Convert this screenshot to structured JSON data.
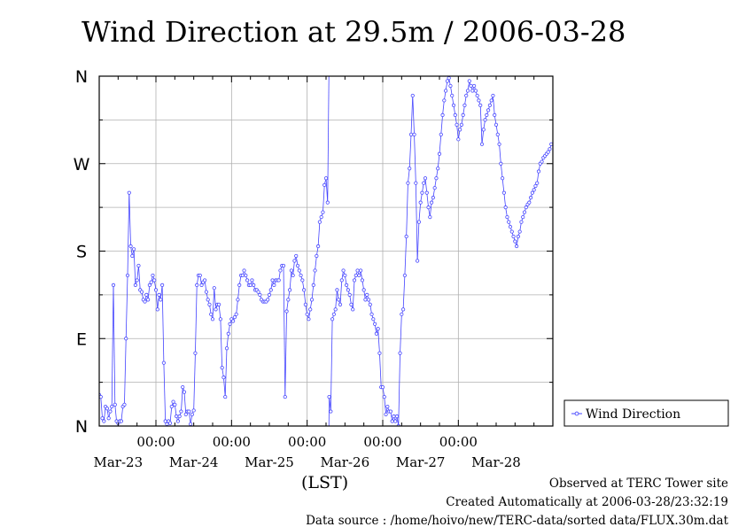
{
  "chart_data": {
    "type": "line",
    "title": "Wind Direction at 29.5m / 2006-03-28",
    "xlabel": "(LST)",
    "ylabel": "",
    "yticks": [
      "N",
      "E",
      "S",
      "W",
      "N"
    ],
    "ylim": [
      0,
      360
    ],
    "xlim_hours": [
      0,
      144
    ],
    "x_time_labels": [
      "00:00",
      "00:00",
      "00:00",
      "00:00",
      "00:00"
    ],
    "x_date_labels": [
      "Mar-23",
      "Mar-24",
      "Mar-25",
      "Mar-26",
      "Mar-27",
      "Mar-28"
    ],
    "grid": true,
    "legend_position": "right",
    "series": [
      {
        "name": "Wind Direction",
        "color": "#4444ff",
        "marker": "open-circle",
        "points": [
          [
            0.0,
            32
          ],
          [
            0.5,
            30
          ],
          [
            1.0,
            8
          ],
          [
            1.5,
            5
          ],
          [
            2.0,
            20
          ],
          [
            2.5,
            18
          ],
          [
            3.0,
            8
          ],
          [
            3.5,
            15
          ],
          [
            4.0,
            20
          ],
          [
            4.5,
            145
          ],
          [
            5.0,
            22
          ],
          [
            5.5,
            5
          ],
          [
            6.0,
            3
          ],
          [
            6.5,
            5
          ],
          [
            7.0,
            5
          ],
          [
            7.5,
            20
          ],
          [
            8.0,
            22
          ],
          [
            8.5,
            90
          ],
          [
            9.0,
            155
          ],
          [
            9.5,
            240
          ],
          [
            10.0,
            185
          ],
          [
            10.5,
            175
          ],
          [
            11.0,
            182
          ],
          [
            11.5,
            145
          ],
          [
            12.0,
            150
          ],
          [
            12.5,
            165
          ],
          [
            13.0,
            140
          ],
          [
            13.5,
            138
          ],
          [
            14.0,
            130
          ],
          [
            14.5,
            128
          ],
          [
            15.0,
            135
          ],
          [
            15.5,
            130
          ],
          [
            16.0,
            145
          ],
          [
            16.5,
            148
          ],
          [
            17.0,
            155
          ],
          [
            17.5,
            150
          ],
          [
            18.0,
            140
          ],
          [
            18.5,
            120
          ],
          [
            19.0,
            135
          ],
          [
            19.5,
            130
          ],
          [
            20.0,
            145
          ],
          [
            20.5,
            65
          ],
          [
            21.0,
            5
          ],
          [
            21.5,
            2
          ],
          [
            22.0,
            5
          ],
          [
            22.5,
            3
          ],
          [
            23.0,
            20
          ],
          [
            23.5,
            25
          ],
          [
            24.0,
            22
          ],
          [
            24.5,
            10
          ],
          [
            25.0,
            5
          ],
          [
            25.5,
            10
          ],
          [
            26.0,
            15
          ],
          [
            26.5,
            40
          ],
          [
            27.0,
            35
          ],
          [
            27.5,
            12
          ],
          [
            28.0,
            15
          ],
          [
            28.5,
            15
          ],
          [
            29.0,
            2
          ],
          [
            29.5,
            12
          ],
          [
            30.0,
            16
          ],
          [
            30.5,
            75
          ],
          [
            31.0,
            145
          ],
          [
            31.5,
            155
          ],
          [
            32.0,
            155
          ],
          [
            32.5,
            145
          ],
          [
            33.0,
            148
          ],
          [
            33.5,
            150
          ],
          [
            34.0,
            138
          ],
          [
            34.5,
            130
          ],
          [
            35.0,
            125
          ],
          [
            35.5,
            115
          ],
          [
            36.0,
            110
          ],
          [
            36.5,
            142
          ],
          [
            37.0,
            120
          ],
          [
            37.5,
            125
          ],
          [
            38.0,
            125
          ],
          [
            38.5,
            110
          ],
          [
            39.0,
            60
          ],
          [
            39.5,
            50
          ],
          [
            40.0,
            30
          ],
          [
            40.5,
            80
          ],
          [
            41.0,
            95
          ],
          [
            41.5,
            105
          ],
          [
            42.0,
            110
          ],
          [
            42.5,
            108
          ],
          [
            43.0,
            112
          ],
          [
            43.5,
            115
          ],
          [
            44.0,
            130
          ],
          [
            44.5,
            145
          ],
          [
            45.0,
            155
          ],
          [
            45.5,
            155
          ],
          [
            46.0,
            160
          ],
          [
            46.5,
            155
          ],
          [
            47.0,
            150
          ],
          [
            47.5,
            145
          ],
          [
            48.0,
            145
          ],
          [
            48.5,
            150
          ],
          [
            49.0,
            145
          ],
          [
            49.5,
            140
          ],
          [
            50.0,
            140
          ],
          [
            50.5,
            138
          ],
          [
            51.0,
            135
          ],
          [
            51.5,
            130
          ],
          [
            52.0,
            128
          ],
          [
            52.5,
            128
          ],
          [
            53.0,
            128
          ],
          [
            53.5,
            130
          ],
          [
            54.0,
            135
          ],
          [
            54.5,
            140
          ],
          [
            55.0,
            150
          ],
          [
            55.5,
            145
          ],
          [
            56.0,
            150
          ],
          [
            56.5,
            150
          ],
          [
            57.0,
            150
          ],
          [
            57.5,
            160
          ],
          [
            58.0,
            165
          ],
          [
            58.5,
            165
          ],
          [
            59.0,
            30
          ],
          [
            59.5,
            118
          ],
          [
            60.0,
            130
          ],
          [
            60.5,
            140
          ],
          [
            61.0,
            160
          ],
          [
            61.5,
            155
          ],
          [
            62.0,
            170
          ],
          [
            62.5,
            175
          ],
          [
            63.0,
            165
          ],
          [
            63.5,
            160
          ],
          [
            64.0,
            155
          ],
          [
            64.5,
            150
          ],
          [
            65.0,
            140
          ],
          [
            65.5,
            125
          ],
          [
            66.0,
            115
          ],
          [
            66.5,
            110
          ],
          [
            67.0,
            120
          ],
          [
            67.5,
            130
          ],
          [
            68.0,
            145
          ],
          [
            68.5,
            160
          ],
          [
            69.0,
            175
          ],
          [
            69.5,
            185
          ],
          [
            70.0,
            210
          ],
          [
            70.5,
            215
          ],
          [
            71.0,
            220
          ],
          [
            71.5,
            248
          ],
          [
            72.0,
            255
          ],
          [
            72.5,
            230
          ],
          [
            73.0,
            30
          ],
          [
            73.5,
            15
          ],
          [
            74.0,
            110
          ],
          [
            74.5,
            115
          ],
          [
            75.0,
            120
          ],
          [
            75.5,
            140
          ],
          [
            76.0,
            130
          ],
          [
            76.5,
            125
          ],
          [
            77.0,
            150
          ],
          [
            77.5,
            160
          ],
          [
            78.0,
            155
          ],
          [
            78.5,
            145
          ],
          [
            79.0,
            140
          ],
          [
            79.5,
            135
          ],
          [
            80.0,
            125
          ],
          [
            80.5,
            120
          ],
          [
            81.0,
            150
          ],
          [
            81.5,
            155
          ],
          [
            82.0,
            160
          ],
          [
            82.5,
            155
          ],
          [
            83.0,
            160
          ],
          [
            83.5,
            150
          ],
          [
            84.0,
            140
          ],
          [
            84.5,
            130
          ],
          [
            85.0,
            135
          ],
          [
            85.5,
            130
          ],
          [
            86.0,
            125
          ],
          [
            86.5,
            115
          ],
          [
            87.0,
            110
          ],
          [
            87.5,
            105
          ],
          [
            88.0,
            95
          ],
          [
            88.5,
            100
          ],
          [
            89.0,
            75
          ],
          [
            89.5,
            40
          ],
          [
            90.0,
            40
          ],
          [
            90.5,
            30
          ],
          [
            91.0,
            12
          ],
          [
            91.5,
            20
          ],
          [
            92.0,
            15
          ],
          [
            92.5,
            15
          ],
          [
            93.0,
            5
          ],
          [
            93.5,
            10
          ],
          [
            94.0,
            5
          ],
          [
            94.5,
            10
          ],
          [
            95.0,
            0
          ],
          [
            95.5,
            75
          ],
          [
            96.0,
            115
          ],
          [
            96.5,
            120
          ],
          [
            97.0,
            155
          ],
          [
            97.5,
            195
          ],
          [
            98.0,
            250
          ],
          [
            98.5,
            265
          ],
          [
            99.0,
            300
          ],
          [
            99.5,
            340
          ],
          [
            100.0,
            300
          ],
          [
            100.5,
            250
          ],
          [
            101.0,
            170
          ],
          [
            101.5,
            210
          ],
          [
            102.0,
            230
          ],
          [
            102.5,
            240
          ],
          [
            103.0,
            250
          ],
          [
            103.5,
            255
          ],
          [
            104.0,
            240
          ],
          [
            104.5,
            225
          ],
          [
            105.0,
            215
          ],
          [
            105.5,
            230
          ],
          [
            106.0,
            235
          ],
          [
            106.5,
            245
          ],
          [
            107.0,
            255
          ],
          [
            107.5,
            265
          ],
          [
            108.0,
            280
          ],
          [
            108.5,
            300
          ],
          [
            109.0,
            320
          ],
          [
            109.5,
            335
          ],
          [
            110.0,
            345
          ],
          [
            110.5,
            355
          ],
          [
            111.0,
            358
          ],
          [
            111.5,
            350
          ],
          [
            112.0,
            340
          ],
          [
            112.5,
            330
          ],
          [
            113.0,
            320
          ],
          [
            113.5,
            310
          ],
          [
            114.0,
            295
          ],
          [
            114.5,
            305
          ],
          [
            115.0,
            310
          ],
          [
            115.5,
            320
          ],
          [
            116.0,
            330
          ],
          [
            116.5,
            340
          ],
          [
            117.0,
            345
          ],
          [
            117.5,
            355
          ],
          [
            118.0,
            350
          ],
          [
            118.5,
            345
          ],
          [
            119.0,
            350
          ],
          [
            119.5,
            345
          ],
          [
            120.0,
            340
          ],
          [
            120.5,
            335
          ],
          [
            121.0,
            330
          ],
          [
            121.5,
            290
          ],
          [
            122.0,
            305
          ],
          [
            122.5,
            315
          ],
          [
            123.0,
            320
          ],
          [
            123.5,
            325
          ],
          [
            124.0,
            330
          ],
          [
            124.5,
            335
          ],
          [
            125.0,
            340
          ],
          [
            125.5,
            320
          ],
          [
            126.0,
            310
          ],
          [
            126.5,
            300
          ],
          [
            127.0,
            290
          ],
          [
            127.5,
            270
          ],
          [
            128.0,
            255
          ],
          [
            128.5,
            240
          ],
          [
            129.0,
            225
          ],
          [
            129.5,
            215
          ],
          [
            130.0,
            210
          ],
          [
            130.5,
            205
          ],
          [
            131.0,
            200
          ],
          [
            131.5,
            195
          ],
          [
            132.0,
            190
          ],
          [
            132.5,
            185
          ],
          [
            133.0,
            195
          ],
          [
            133.5,
            200
          ],
          [
            134.0,
            210
          ],
          [
            134.5,
            215
          ],
          [
            135.0,
            220
          ],
          [
            135.5,
            225
          ],
          [
            136.0,
            228
          ],
          [
            136.5,
            230
          ],
          [
            137.0,
            235
          ],
          [
            137.5,
            240
          ],
          [
            138.0,
            243
          ],
          [
            138.5,
            247
          ],
          [
            139.0,
            250
          ],
          [
            139.5,
            262
          ],
          [
            140.0,
            270
          ],
          [
            140.5,
            272
          ],
          [
            141.0,
            276
          ],
          [
            141.5,
            278
          ],
          [
            142.0,
            280
          ],
          [
            142.5,
            282
          ],
          [
            143.0,
            285
          ],
          [
            143.5,
            290
          ]
        ]
      }
    ]
  },
  "footer": {
    "line1": "Observed at TERC Tower site",
    "line2": "Created Automatically at 2006-03-28/23:32:19",
    "line3": "Data source : /home/hoivo/new/TERC-data/sorted  data/FLUX.30m.dat"
  }
}
